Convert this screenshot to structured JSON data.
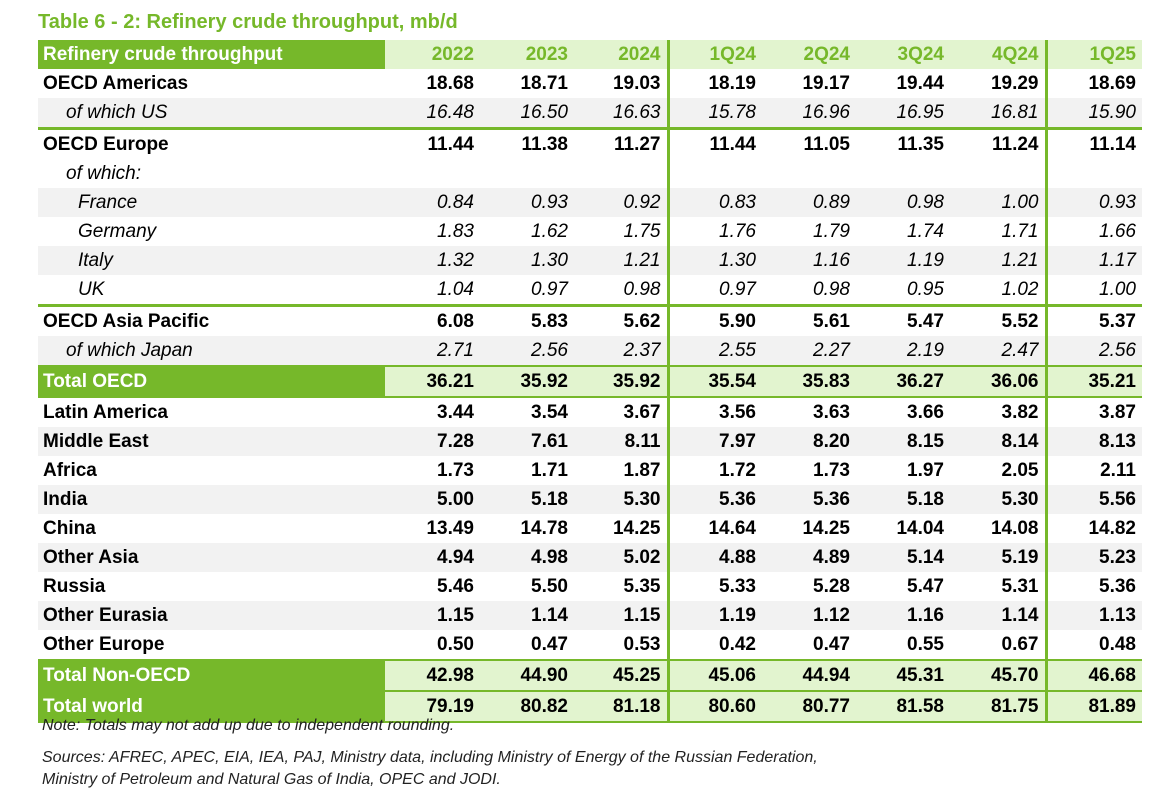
{
  "title": "Table 6 - 2: Refinery crude throughput, mb/d",
  "header": [
    "Refinery crude throughput",
    "2022",
    "2023",
    "2024",
    "1Q24",
    "2Q24",
    "3Q24",
    "4Q24",
    "1Q25"
  ],
  "rows": [
    {
      "label": "OECD Americas",
      "values": [
        "18.68",
        "18.71",
        "19.03",
        "18.19",
        "19.17",
        "19.44",
        "19.29",
        "18.69"
      ],
      "style": "b"
    },
    {
      "label": "of which US",
      "values": [
        "16.48",
        "16.50",
        "16.63",
        "15.78",
        "16.96",
        "16.95",
        "16.81",
        "15.90"
      ],
      "style": "i g sep"
    },
    {
      "label": "OECD Europe",
      "values": [
        "11.44",
        "11.38",
        "11.27",
        "11.44",
        "11.05",
        "11.35",
        "11.24",
        "11.14"
      ],
      "style": "b"
    },
    {
      "label": "of which:",
      "values": [
        "",
        "",
        "",
        "",
        "",
        "",
        "",
        ""
      ],
      "style": "i"
    },
    {
      "label": "France",
      "values": [
        "0.84",
        "0.93",
        "0.92",
        "0.83",
        "0.89",
        "0.98",
        "1.00",
        "0.93"
      ],
      "style": "i ii g"
    },
    {
      "label": "Germany",
      "values": [
        "1.83",
        "1.62",
        "1.75",
        "1.76",
        "1.79",
        "1.74",
        "1.71",
        "1.66"
      ],
      "style": "i ii"
    },
    {
      "label": "Italy",
      "values": [
        "1.32",
        "1.30",
        "1.21",
        "1.30",
        "1.16",
        "1.19",
        "1.21",
        "1.17"
      ],
      "style": "i ii g"
    },
    {
      "label": "UK",
      "values": [
        "1.04",
        "0.97",
        "0.98",
        "0.97",
        "0.98",
        "0.95",
        "1.02",
        "1.00"
      ],
      "style": "i ii sep"
    },
    {
      "label": "OECD Asia Pacific",
      "values": [
        "6.08",
        "5.83",
        "5.62",
        "5.90",
        "5.61",
        "5.47",
        "5.52",
        "5.37"
      ],
      "style": "b"
    },
    {
      "label": "of which Japan",
      "values": [
        "2.71",
        "2.56",
        "2.37",
        "2.55",
        "2.27",
        "2.19",
        "2.47",
        "2.56"
      ],
      "style": "i g"
    },
    {
      "label": "Total OECD",
      "values": [
        "36.21",
        "35.92",
        "35.92",
        "35.54",
        "35.83",
        "36.27",
        "36.06",
        "35.21"
      ],
      "style": "t"
    },
    {
      "label": "Latin America",
      "values": [
        "3.44",
        "3.54",
        "3.67",
        "3.56",
        "3.63",
        "3.66",
        "3.82",
        "3.87"
      ],
      "style": "b"
    },
    {
      "label": "Middle East",
      "values": [
        "7.28",
        "7.61",
        "8.11",
        "7.97",
        "8.20",
        "8.15",
        "8.14",
        "8.13"
      ],
      "style": "b g"
    },
    {
      "label": "Africa",
      "values": [
        "1.73",
        "1.71",
        "1.87",
        "1.72",
        "1.73",
        "1.97",
        "2.05",
        "2.11"
      ],
      "style": "b"
    },
    {
      "label": "India",
      "values": [
        "5.00",
        "5.18",
        "5.30",
        "5.36",
        "5.36",
        "5.18",
        "5.30",
        "5.56"
      ],
      "style": "b g"
    },
    {
      "label": "China",
      "values": [
        "13.49",
        "14.78",
        "14.25",
        "14.64",
        "14.25",
        "14.04",
        "14.08",
        "14.82"
      ],
      "style": "b"
    },
    {
      "label": "Other Asia",
      "values": [
        "4.94",
        "4.98",
        "5.02",
        "4.88",
        "4.89",
        "5.14",
        "5.19",
        "5.23"
      ],
      "style": "b g"
    },
    {
      "label": "Russia",
      "values": [
        "5.46",
        "5.50",
        "5.35",
        "5.33",
        "5.28",
        "5.47",
        "5.31",
        "5.36"
      ],
      "style": "b"
    },
    {
      "label": "Other Eurasia",
      "values": [
        "1.15",
        "1.14",
        "1.15",
        "1.19",
        "1.12",
        "1.16",
        "1.14",
        "1.13"
      ],
      "style": "b g"
    },
    {
      "label": "Other Europe",
      "values": [
        "0.50",
        "0.47",
        "0.53",
        "0.42",
        "0.47",
        "0.55",
        "0.67",
        "0.48"
      ],
      "style": "b"
    },
    {
      "label": "Total Non-OECD",
      "values": [
        "42.98",
        "44.90",
        "45.25",
        "45.06",
        "44.94",
        "45.31",
        "45.70",
        "46.68"
      ],
      "style": "t"
    },
    {
      "label": "Total world",
      "values": [
        "79.19",
        "80.82",
        "81.18",
        "80.60",
        "80.77",
        "81.58",
        "81.75",
        "81.89"
      ],
      "style": "t"
    }
  ],
  "note": "Note: Totals may not add up due to independent rounding.",
  "sources": [
    "Sources: AFREC, APEC, EIA, IEA, PAJ, Ministry data, including Ministry of Energy of the Russian Federation,",
    "Ministry of Petroleum and Natural Gas of India, OPEC and JODI."
  ]
}
